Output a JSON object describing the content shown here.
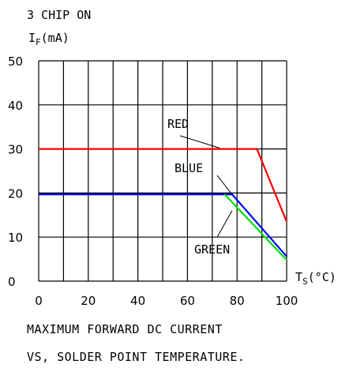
{
  "chart_data": {
    "type": "line",
    "title": "3 CHIP ON",
    "ylabel": {
      "main": "I",
      "sub": "F",
      "unit": "(mA)"
    },
    "xlabel": {
      "main": "T",
      "sub": "S",
      "unit": "(°C)"
    },
    "xlim": [
      0,
      100
    ],
    "ylim": [
      0,
      50
    ],
    "x_ticks": [
      0,
      20,
      40,
      60,
      80,
      100
    ],
    "y_ticks": [
      0,
      10,
      20,
      30,
      40,
      50
    ],
    "grid": true,
    "series": [
      {
        "name": "RED",
        "color": "#ff0000",
        "points": [
          [
            0,
            30
          ],
          [
            88,
            30
          ],
          [
            100,
            13.5
          ]
        ]
      },
      {
        "name": "BLUE",
        "color": "#0000ff",
        "points": [
          [
            0,
            19.7
          ],
          [
            78,
            19.7
          ],
          [
            100,
            5.6
          ]
        ]
      },
      {
        "name": "GREEN",
        "color": "#00e000",
        "points": [
          [
            75,
            19.7
          ],
          [
            100,
            4.8
          ]
        ]
      }
    ],
    "annotations": [
      {
        "text": "RED",
        "leader_from": [
          57,
          33
        ],
        "leader_to": [
          73,
          30.2
        ]
      },
      {
        "text": "BLUE",
        "leader_from": [
          72,
          24
        ],
        "leader_to": [
          77.5,
          20
        ]
      },
      {
        "text": "GREEN",
        "leader_from": [
          72,
          10
        ],
        "leader_to": [
          78,
          16
        ]
      }
    ],
    "caption": [
      "MAXIMUM FORWARD DC CURRENT",
      "VS, SOLDER POINT TEMPERATURE."
    ]
  }
}
